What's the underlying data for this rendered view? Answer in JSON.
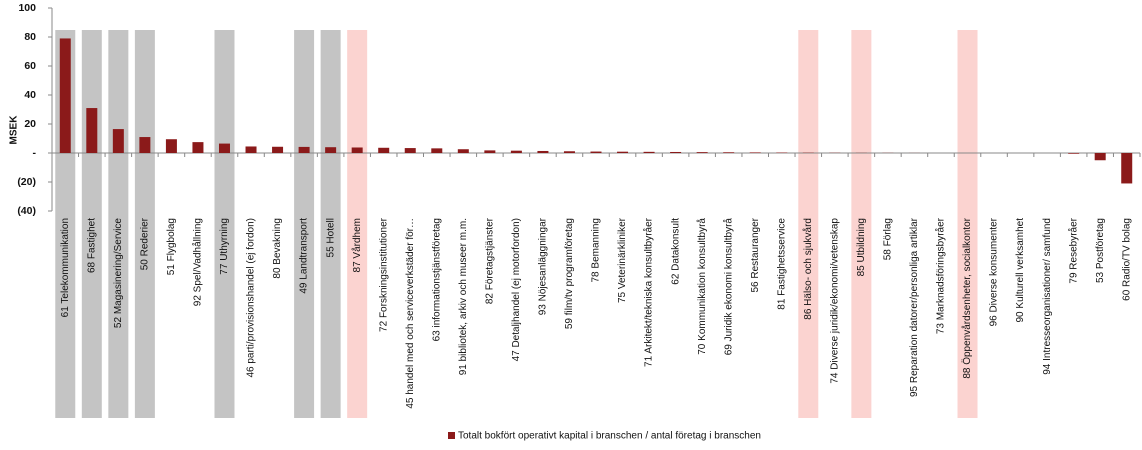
{
  "chart_data": {
    "type": "bar",
    "y_label": "MSEK",
    "categories": [
      "61 Telekommunikation",
      "68 Fastighet",
      "52 Magasinering/Service",
      "50 Rederier",
      "51 Flygbolag",
      "92 Spel/Vadhållning",
      "77 Uthyrning",
      "46 parti/provisionshandel (ej fordon)",
      "80 Bevakning",
      "49 Landtransport",
      "55 Hotell",
      "87 Vårdhem",
      "72 Forskningsinstitutioner",
      "45 handel med och serviceverkstäder för…",
      "63 informationstjänstföretag",
      "91 bibliotek, arkiv och museer m.m.",
      "82 Företagstjänster",
      "47 Detaljhandel (ej motorfordon)",
      "93 Nöjesanläggningar",
      "59 film/tv programföretag",
      "78 Bemanning",
      "75 Veterinärkliniker",
      "71 Arkitekt/tekniska konsultbyråer",
      "62 Datakonsult",
      "70 Kommunikation konsultbyrå",
      "69 Juridik ekonomi konsultbyrå",
      "56 Restauranger",
      "81 Fastighetsservice",
      "86 Hälso- och sjukvård",
      "74 Diverse juridik/ekonomi/vetenskap",
      "85 Utbildning",
      "58 Förlag",
      "95 Reparation datorer/personliga artiklar",
      "73 Marknadsföringsbyråer",
      "88 Öppenvårdsenheter, socialkontor",
      "96 Diverse konsumenter",
      "90 Kulturell verksamhet",
      "94 Intresseorganisationer/ samfund",
      "79 Resebyråer",
      "53 Postföretag",
      "60 Radio/TV bolag"
    ],
    "series": [
      {
        "name": "Totalt bokfört operativt kapital i branschen / antal företag i branschen",
        "color": "#8b1a1a",
        "values": [
          79,
          31,
          16.5,
          11,
          9.5,
          7.5,
          6.5,
          4.5,
          4.3,
          4.2,
          4,
          3.8,
          3.6,
          3.4,
          3.2,
          2.6,
          1.8,
          1.6,
          1.4,
          1.2,
          1,
          0.9,
          0.8,
          0.7,
          0.6,
          0.5,
          0.4,
          0.3,
          0.2,
          0.15,
          0.1,
          0.1,
          0.05,
          0,
          0,
          0,
          0,
          0,
          -0.5,
          -5,
          -21
        ]
      }
    ],
    "highlight_colors": [
      "#c4c4c4",
      "#c4c4c4",
      "#c4c4c4",
      "#c4c4c4",
      null,
      null,
      "#c4c4c4",
      null,
      null,
      "#c4c4c4",
      "#c4c4c4",
      "#fbd3d0",
      null,
      null,
      null,
      null,
      null,
      null,
      null,
      null,
      null,
      null,
      null,
      null,
      null,
      null,
      null,
      null,
      "#fbd3d0",
      null,
      "#fbd3d0",
      null,
      null,
      null,
      "#fbd3d0",
      null,
      null,
      null,
      null,
      null,
      null
    ],
    "ylim": [
      -40,
      100
    ],
    "yticks": [
      {
        "value": -40,
        "label": "(40)"
      },
      {
        "value": -20,
        "label": "(20)"
      },
      {
        "value": 0,
        "label": "-"
      },
      20,
      40,
      60,
      80,
      100
    ],
    "legend": "bottom"
  }
}
